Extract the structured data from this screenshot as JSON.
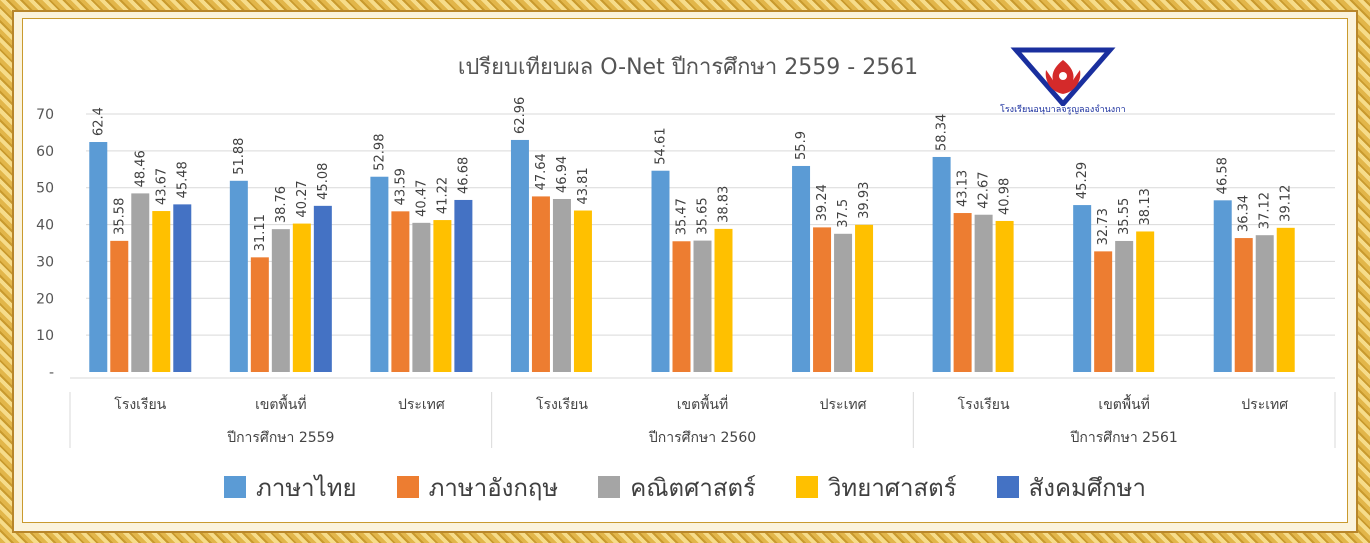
{
  "chart_data": {
    "type": "bar",
    "title": "เปรียบเทียบผล O-Net ปีการศึกษา 2559 - 2561",
    "ylim": [
      0,
      70
    ],
    "yticks": [
      "-",
      "10",
      "20",
      "30",
      "40",
      "50",
      "60",
      "70"
    ],
    "grid": true,
    "legend_position": "bottom",
    "groups": [
      {
        "label": "ปีการศึกษา 2559",
        "categories": [
          {
            "label": "โรงเรียน",
            "values": [
              62.4,
              35.58,
              48.46,
              43.67,
              45.48
            ],
            "value_labels": [
              "62.4",
              "35.58",
              "48.46",
              "43.67",
              "45.48"
            ]
          },
          {
            "label": "เขตพื้นที่",
            "values": [
              51.88,
              31.11,
              38.76,
              40.27,
              45.08
            ],
            "value_labels": [
              "51.88",
              "31.11",
              "38.76",
              "40.27",
              "45.08"
            ]
          },
          {
            "label": "ประเทศ",
            "values": [
              52.98,
              43.59,
              40.47,
              41.22,
              46.68
            ],
            "value_labels": [
              "52.98",
              "43.59",
              "40.47",
              "41.22",
              "46.68"
            ]
          }
        ]
      },
      {
        "label": "ปีการศึกษา 2560",
        "categories": [
          {
            "label": "โรงเรียน",
            "values": [
              62.96,
              47.64,
              46.94,
              43.81
            ],
            "value_labels": [
              "62.96",
              "47.64",
              "46.94",
              "43.81"
            ]
          },
          {
            "label": "เขตพื้นที่",
            "values": [
              54.61,
              35.47,
              35.65,
              38.83
            ],
            "value_labels": [
              "54.61",
              "35.47",
              "35.65",
              "38.83"
            ]
          },
          {
            "label": "ประเทศ",
            "values": [
              55.9,
              39.24,
              37.5,
              39.93
            ],
            "value_labels": [
              "55.9",
              "39.24",
              "37.5",
              "39.93"
            ]
          }
        ]
      },
      {
        "label": "ปีการศึกษา 2561",
        "categories": [
          {
            "label": "โรงเรียน",
            "values": [
              58.34,
              43.13,
              42.67,
              40.98
            ],
            "value_labels": [
              "58.34",
              "43.13",
              "42.67",
              "40.98"
            ]
          },
          {
            "label": "เขตพื้นที่",
            "values": [
              45.29,
              32.73,
              35.55,
              38.13
            ],
            "value_labels": [
              "45.29",
              "32.73",
              "35.55",
              "38.13"
            ]
          },
          {
            "label": "ประเทศ",
            "values": [
              46.58,
              36.34,
              37.12,
              39.12
            ],
            "value_labels": [
              "46.58",
              "36.34",
              "37.12",
              "39.12"
            ]
          }
        ]
      }
    ],
    "series": [
      {
        "name": "ภาษาไทย",
        "color": "#5b9bd5"
      },
      {
        "name": "ภาษาอังกฤษ",
        "color": "#ed7d31"
      },
      {
        "name": "คณิตศาสตร์",
        "color": "#a5a5a5"
      },
      {
        "name": "วิทยาศาสตร์",
        "color": "#ffc000"
      },
      {
        "name": "สังคมศึกษา",
        "color": "#4472c4"
      }
    ]
  },
  "logo": {
    "caption": "โรงเรียนอนุบาลจรูญลองจำนงการ",
    "icon": "school-emblem-icon"
  }
}
